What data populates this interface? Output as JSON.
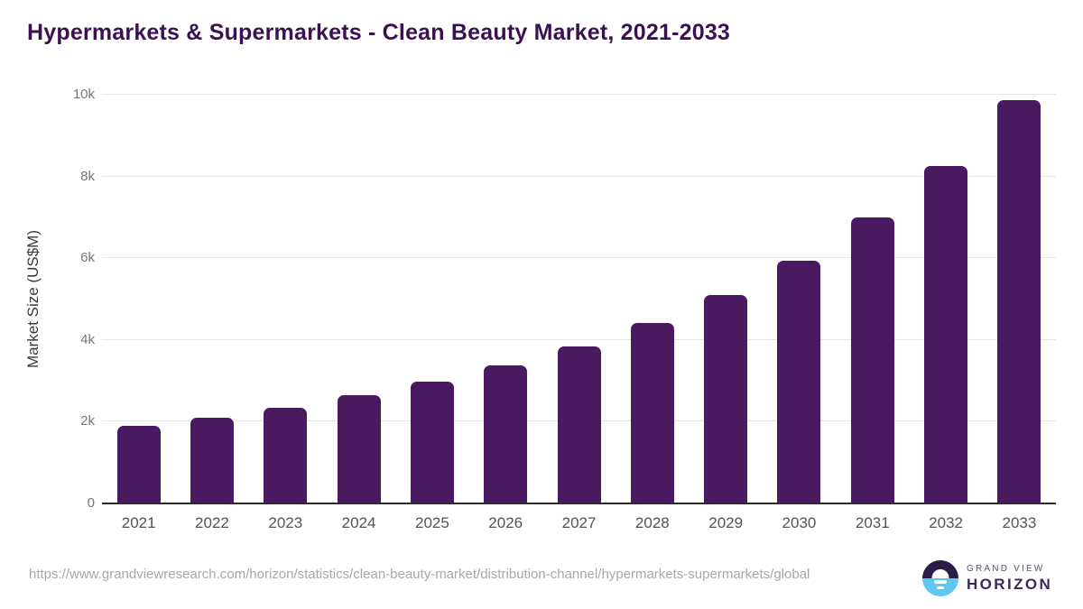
{
  "page": {
    "title": "Hypermarkets & Supermarkets - Clean Beauty Market, 2021-2033"
  },
  "chart_data": {
    "type": "bar",
    "title": "Hypermarkets & Supermarkets - Clean Beauty Market, 2021-2033",
    "categories": [
      "2021",
      "2022",
      "2023",
      "2024",
      "2025",
      "2026",
      "2027",
      "2028",
      "2029",
      "2030",
      "2031",
      "2032",
      "2033"
    ],
    "values": [
      1900,
      2100,
      2350,
      2640,
      2970,
      3380,
      3845,
      4410,
      5110,
      5940,
      6990,
      8260,
      9860
    ],
    "xlabel": "",
    "ylabel": "Market Size (US$M)",
    "ylim": [
      0,
      10000
    ],
    "yticks": [
      0,
      2000,
      4000,
      6000,
      8000,
      10000
    ],
    "ytick_labels": [
      "0",
      "2k",
      "4k",
      "6k",
      "8k",
      "10k"
    ],
    "grid": "horizontal",
    "legend": "none",
    "units": "US$M"
  },
  "colors": {
    "bar": "#491a60",
    "title": "#3b1152",
    "gridline": "#e6e6e6",
    "axis_line": "#2b2b2b",
    "tick_label": "#767676",
    "x_label": "#545454",
    "source": "#a7a7a7",
    "logo_dark": "#2b1b47",
    "logo_blue": "#5ec8f1"
  },
  "footer": {
    "source_url": "https://www.grandviewresearch.com/horizon/statistics/clean-beauty-market/distribution-channel/hypermarkets-supermarkets/global",
    "logo_top": "GRAND VIEW",
    "logo_bottom": "HORIZON"
  }
}
